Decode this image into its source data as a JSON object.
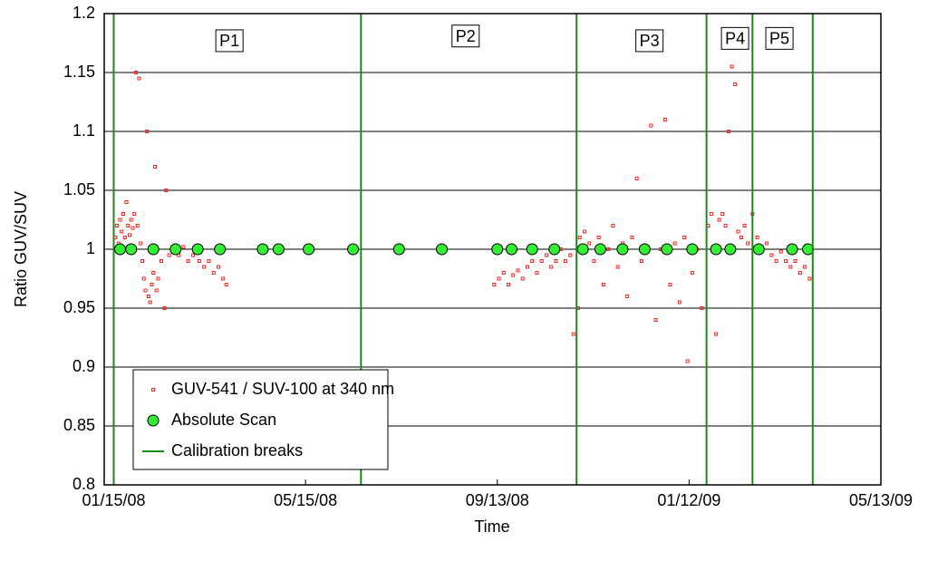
{
  "chart_data": {
    "type": "scatter",
    "x_label": "Time",
    "y_label": "Ratio GUV/SUV",
    "xlim": [
      "01/09/08",
      "05/13/09"
    ],
    "xticks": [
      "01/15/08",
      "05/15/08",
      "09/13/08",
      "01/12/09",
      "05/13/09"
    ],
    "ylim": [
      0.8,
      1.2
    ],
    "yticks": [
      0.8,
      0.85,
      0.9,
      0.95,
      1,
      1.05,
      1.1,
      1.15,
      1.2
    ],
    "grid": true,
    "legend": "lower left",
    "annotations": [
      {
        "text": "P1",
        "x": "03/28/08",
        "y": 1.176
      },
      {
        "text": "P2",
        "x": "08/24/08",
        "y": 1.18
      },
      {
        "text": "P3",
        "x": "12/18/08",
        "y": 1.176
      },
      {
        "text": "P4",
        "x": "02/10/09",
        "y": 1.178
      },
      {
        "text": "P5",
        "x": "03/10/09",
        "y": 1.178
      }
    ],
    "series": [
      {
        "name": "GUV-541 / SUV-100 at 340 nm",
        "color": "#ff2020",
        "marker": "square",
        "x": [
          "01/16/08",
          "01/17/08",
          "01/18/08",
          "01/19/08",
          "01/20/08",
          "01/21/08",
          "01/22/08",
          "01/23/08",
          "01/24/08",
          "01/25/08",
          "01/26/08",
          "01/27/08",
          "01/28/08",
          "01/29/08",
          "01/30/08",
          "01/31/08",
          "02/01/08",
          "02/02/08",
          "02/03/08",
          "02/04/08",
          "02/05/08",
          "02/06/08",
          "02/07/08",
          "02/08/08",
          "02/09/08",
          "02/10/08",
          "02/11/08",
          "02/12/08",
          "02/14/08",
          "02/16/08",
          "02/17/08",
          "02/19/08",
          "02/22/08",
          "02/25/08",
          "02/28/08",
          "03/02/08",
          "03/05/08",
          "03/09/08",
          "03/12/08",
          "03/15/08",
          "03/18/08",
          "03/21/08",
          "03/24/08",
          "03/26/08",
          "09/11/08",
          "09/14/08",
          "09/17/08",
          "09/20/08",
          "09/23/08",
          "09/26/08",
          "09/29/08",
          "10/02/08",
          "10/05/08",
          "10/08/08",
          "10/11/08",
          "10/14/08",
          "10/17/08",
          "10/20/08",
          "10/23/08",
          "10/26/08",
          "10/29/08",
          "10/31/08",
          "11/03/08",
          "11/04/08",
          "11/07/08",
          "11/10/08",
          "11/13/08",
          "11/16/08",
          "11/19/08",
          "11/22/08",
          "11/25/08",
          "11/28/08",
          "12/01/08",
          "12/04/08",
          "12/07/08",
          "12/10/08",
          "12/13/08",
          "12/19/08",
          "12/22/08",
          "12/25/08",
          "12/28/08",
          "12/31/08",
          "01/03/09",
          "01/06/09",
          "01/09/09",
          "01/11/09",
          "01/14/09",
          "01/17/09",
          "01/20/09",
          "01/24/09",
          "01/26/09",
          "01/29/09",
          "01/31/09",
          "02/02/09",
          "02/04/09",
          "02/06/09",
          "02/08/09",
          "02/10/09",
          "02/12/09",
          "02/14/09",
          "02/16/09",
          "02/18/09",
          "02/21/09",
          "02/24/09",
          "02/27/09",
          "03/02/09",
          "03/05/09",
          "03/08/09",
          "03/11/09",
          "03/14/09",
          "03/17/09",
          "03/20/09",
          "03/23/09",
          "03/26/09",
          "03/29/09"
        ],
        "values": [
          1.01,
          1.02,
          1.005,
          1.025,
          1.015,
          1.03,
          1.01,
          1.04,
          1.02,
          1.012,
          1.025,
          1.018,
          1.03,
          1.15,
          1.02,
          1.145,
          1.005,
          0.99,
          0.975,
          0.965,
          1.1,
          0.96,
          0.955,
          0.97,
          0.98,
          1.07,
          0.965,
          0.975,
          0.99,
          0.95,
          1.05,
          0.995,
          1.0,
          0.995,
          1.002,
          0.99,
          0.995,
          0.99,
          0.985,
          0.99,
          0.98,
          0.985,
          0.975,
          0.97,
          0.97,
          0.975,
          0.98,
          0.97,
          0.978,
          0.982,
          0.975,
          0.985,
          0.99,
          0.98,
          0.99,
          0.995,
          0.985,
          0.99,
          1.0,
          0.99,
          0.995,
          0.928,
          0.95,
          1.01,
          1.015,
          1.005,
          0.99,
          1.01,
          0.97,
          1.0,
          1.02,
          0.985,
          1.005,
          0.96,
          1.01,
          1.06,
          0.99,
          1.105,
          0.94,
          1.0,
          1.11,
          0.97,
          1.005,
          0.955,
          1.01,
          0.905,
          0.98,
          1.0,
          0.95,
          1.02,
          1.03,
          0.928,
          1.025,
          1.03,
          1.02,
          1.1,
          1.155,
          1.14,
          1.015,
          1.01,
          1.02,
          1.005,
          1.03,
          1.01,
          1.0,
          1.005,
          0.995,
          0.99,
          0.998,
          0.99,
          0.985,
          0.99,
          0.98,
          0.985,
          0.975
        ]
      },
      {
        "name": "Absolute Scan",
        "color": "#33ee33",
        "marker": "circle",
        "x": [
          "01/19/08",
          "01/26/08",
          "02/09/08",
          "02/23/08",
          "03/08/08",
          "03/22/08",
          "04/18/08",
          "04/28/08",
          "05/17/08",
          "06/14/08",
          "07/13/08",
          "08/09/08",
          "09/13/08",
          "09/22/08",
          "10/05/08",
          "10/19/08",
          "11/06/08",
          "11/17/08",
          "12/01/08",
          "12/15/08",
          "12/29/08",
          "01/14/09",
          "01/29/09",
          "02/07/09",
          "02/25/09",
          "03/18/09",
          "03/28/09"
        ],
        "values": [
          1,
          1,
          1,
          1,
          1,
          1,
          1,
          1,
          1,
          1,
          1,
          1,
          1,
          1,
          1,
          1,
          1,
          1,
          1,
          1,
          1,
          1,
          1,
          1,
          1,
          1,
          1
        ]
      },
      {
        "name": "Calibration breaks",
        "color": "#1a8a1a",
        "marker": "vline",
        "x": [
          "01/15/08",
          "06/19/08",
          "11/02/08",
          "01/23/09",
          "02/21/09",
          "03/31/09"
        ]
      }
    ]
  }
}
